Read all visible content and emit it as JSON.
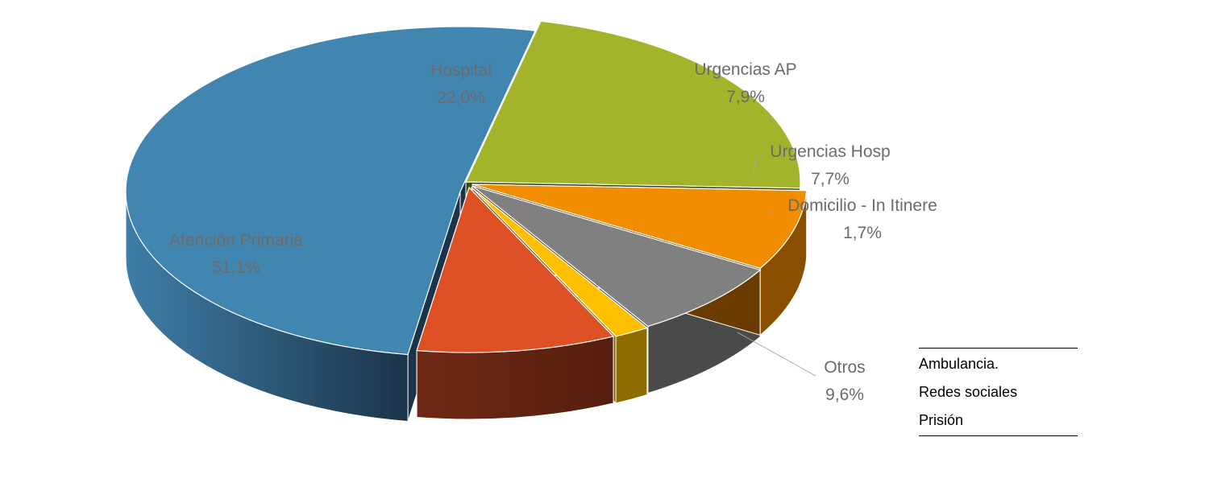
{
  "chart_data": {
    "type": "pie",
    "style": "3d-exploded",
    "slices": [
      {
        "label": "Atención Primaria",
        "value": 51.1,
        "value_label": "51,1%",
        "color": "#4185B1",
        "side_dark": "#1B3449",
        "side_light": "#3E7EA8"
      },
      {
        "label": "Hospital",
        "value": 22.0,
        "value_label": "22,0%",
        "color": "#A3B42B",
        "side_dark": "#3F4711",
        "side_light": "#5C6818"
      },
      {
        "label": "Urgencias AP",
        "value": 7.9,
        "value_label": "7,9%",
        "color": "#F28C00",
        "side_dark": "#6B3C00",
        "side_light": "#8A4E00"
      },
      {
        "label": "Urgencias Hosp",
        "value": 7.7,
        "value_label": "7,7%",
        "color": "#808080",
        "side_dark": "#3A3A3A",
        "side_light": "#4A4A4A"
      },
      {
        "label": "Domicilio - In Itinere",
        "value": 1.7,
        "value_label": "1,7%",
        "color": "#FFC000",
        "side_dark": "#7A5C00",
        "side_light": "#8F6C00"
      },
      {
        "label": "Otros",
        "value": 9.6,
        "value_label": "9,6%",
        "color": "#DD5125",
        "side_dark": "#561E0F",
        "side_light": "#6E2914"
      }
    ],
    "label_color": "#6B6B6B"
  },
  "note": {
    "lines": [
      "Ambulancia.",
      "Redes sociales",
      "Prisión"
    ]
  }
}
